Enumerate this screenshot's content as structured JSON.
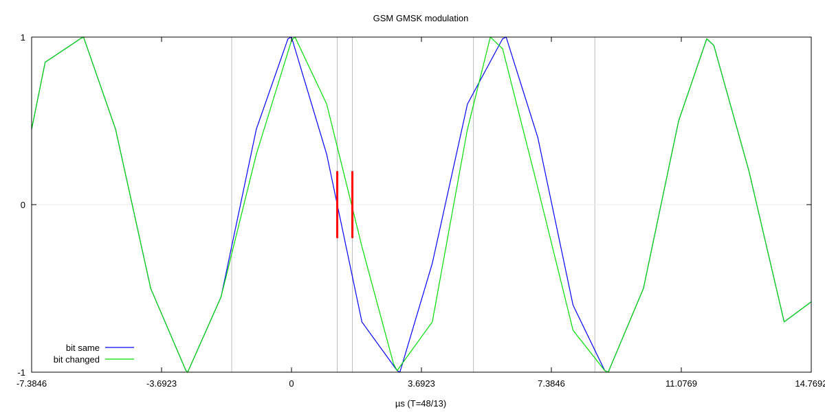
{
  "chart_data": {
    "type": "line",
    "title": "GSM GMSK modulation",
    "xlabel": "µs (T=48/13)",
    "ylabel": "",
    "xlim": [
      -7.3846,
      14.7692
    ],
    "ylim": [
      -1,
      1
    ],
    "x_ticks": [
      -7.3846,
      -3.6923,
      0,
      3.6923,
      7.3846,
      11.0769,
      14.7692
    ],
    "x_tick_labels": [
      "-7.3846",
      "-3.6923",
      "0",
      "3.6923",
      "7.3846",
      "11.0769",
      "14.7692"
    ],
    "y_ticks": [
      -1,
      0,
      1
    ],
    "y_tick_labels": [
      "-1",
      "0",
      "1"
    ],
    "vertical_gridlines": [
      -1.7,
      1.3,
      1.73,
      5.17,
      8.62
    ],
    "horizontal_gridlines": [
      0
    ],
    "markers": [
      {
        "x": 1.3,
        "y_from": -0.2,
        "y_to": 0.2,
        "color": "#ff0000"
      },
      {
        "x": 1.73,
        "y_from": -0.2,
        "y_to": 0.2,
        "color": "#ff0000"
      }
    ],
    "series": [
      {
        "name": "bit same",
        "color": "#0000ff",
        "x": [
          -7.3846,
          -7.0,
          -6.0,
          -5.91,
          -5.0,
          -4.0,
          -3.0,
          -2.95,
          -2.0,
          -1.0,
          -0.1,
          0.0,
          1.0,
          2.0,
          3.0,
          3.08,
          4.0,
          5.0,
          6.0,
          6.1,
          7.0,
          8.0,
          8.9,
          9.0,
          10.0,
          11.0,
          11.8,
          12.0,
          13.0,
          14.0,
          14.7692
        ],
        "y": [
          0.45,
          0.85,
          0.99,
          1.0,
          0.45,
          -0.5,
          -0.99,
          -1.0,
          -0.55,
          0.45,
          0.99,
          1.0,
          0.3,
          -0.7,
          -0.99,
          -1.0,
          -0.35,
          0.6,
          0.99,
          1.0,
          0.4,
          -0.6,
          -0.99,
          -1.0,
          -0.5,
          0.5,
          0.99,
          0.95,
          0.2,
          -0.7,
          -0.58
        ]
      },
      {
        "name": "bit changed",
        "color": "#00dd00",
        "x": [
          -7.3846,
          -7.0,
          -6.0,
          -5.91,
          -5.0,
          -4.0,
          -3.0,
          -2.95,
          -2.0,
          -1.0,
          0.0,
          0.1,
          1.0,
          2.0,
          2.9,
          3.0,
          4.0,
          5.0,
          5.65,
          6.0,
          7.0,
          8.0,
          8.9,
          9.0,
          10.0,
          11.0,
          11.8,
          12.0,
          13.0,
          14.0,
          14.7692
        ],
        "y": [
          0.45,
          0.85,
          0.99,
          1.0,
          0.45,
          -0.5,
          -0.99,
          -1.0,
          -0.55,
          0.3,
          0.98,
          1.0,
          0.6,
          -0.25,
          -0.95,
          -0.99,
          -0.7,
          0.45,
          1.0,
          0.93,
          0.1,
          -0.75,
          -0.99,
          -1.0,
          -0.5,
          0.5,
          0.99,
          0.95,
          0.2,
          -0.7,
          -0.58
        ]
      }
    ],
    "legend_position": "bottom-left"
  }
}
